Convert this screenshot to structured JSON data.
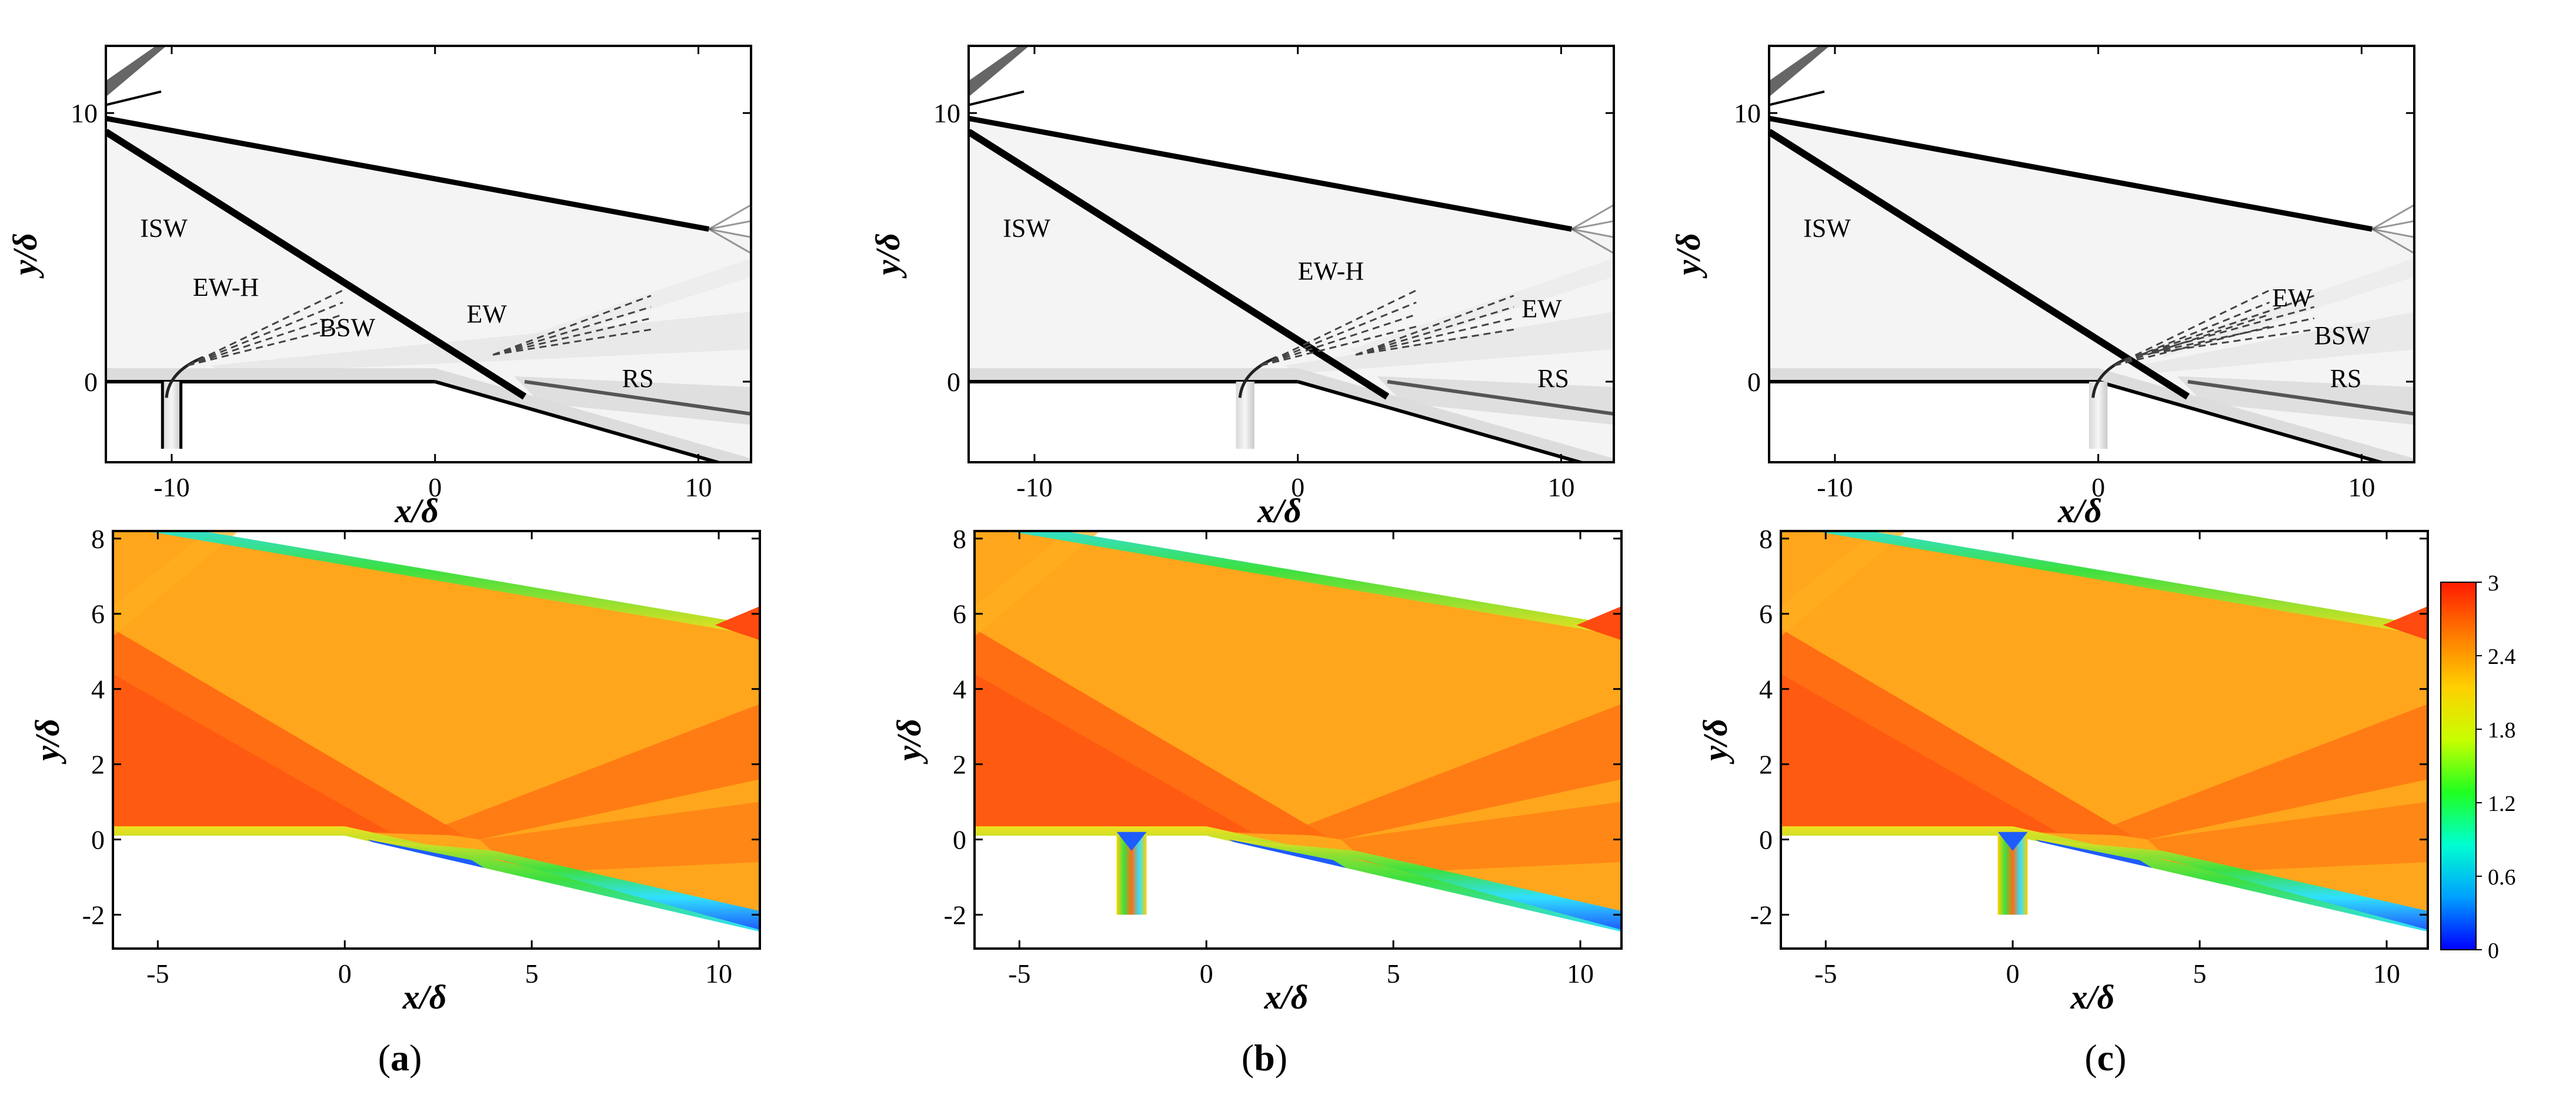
{
  "panel_labels": [
    "(a)",
    "(b)",
    "(c)"
  ],
  "chart_data": [
    {
      "type": "heatmap",
      "title": "",
      "field": "numerical schlieren (density gradient)",
      "xlabel": "x/δ",
      "ylabel": "y/δ",
      "xlim": [
        -12.5,
        12
      ],
      "ylim": [
        -3,
        12.5
      ],
      "xticks": [
        -10,
        0,
        10
      ],
      "yticks": [
        0,
        10
      ],
      "jet_x": -10,
      "annotations": [
        {
          "text": "ISW",
          "x": -11.2,
          "y": 5.4
        },
        {
          "text": "EW-H",
          "x": -9.2,
          "y": 3.2
        },
        {
          "text": "BSW",
          "x": -4.4,
          "y": 1.7
        },
        {
          "text": "EW",
          "x": 1.2,
          "y": 2.2
        },
        {
          "text": "RS",
          "x": 7.1,
          "y": -0.2
        }
      ]
    },
    {
      "type": "heatmap",
      "title": "",
      "field": "numerical schlieren (density gradient)",
      "xlabel": "x/δ",
      "ylabel": "y/δ",
      "xlim": [
        -12.5,
        12
      ],
      "ylim": [
        -3,
        12.5
      ],
      "xticks": [
        -10,
        0,
        10
      ],
      "yticks": [
        0,
        10
      ],
      "jet_x": -2,
      "annotations": [
        {
          "text": "ISW",
          "x": -11.2,
          "y": 5.4
        },
        {
          "text": "EW-H",
          "x": 0,
          "y": 3.8
        },
        {
          "text": "EW",
          "x": 8.5,
          "y": 2.4
        },
        {
          "text": "RS",
          "x": 9.1,
          "y": -0.2
        }
      ]
    },
    {
      "type": "heatmap",
      "title": "",
      "field": "numerical schlieren (density gradient)",
      "xlabel": "x/δ",
      "ylabel": "y/δ",
      "xlim": [
        -12.5,
        12
      ],
      "ylim": [
        -3,
        12.5
      ],
      "xticks": [
        -10,
        0,
        10
      ],
      "yticks": [
        0,
        10
      ],
      "jet_x": 0,
      "annotations": [
        {
          "text": "ISW",
          "x": -11.2,
          "y": 5.4
        },
        {
          "text": "EW",
          "x": 6.6,
          "y": 2.8
        },
        {
          "text": "BSW",
          "x": 8.2,
          "y": 1.4
        },
        {
          "text": "RS",
          "x": 8.8,
          "y": -0.2
        }
      ]
    },
    {
      "type": "heatmap",
      "title": "",
      "field": "Mach number contour",
      "xlabel": "x/δ",
      "ylabel": "y/δ",
      "xlim": [
        -6.2,
        11.1
      ],
      "ylim": [
        -2.9,
        8.2
      ],
      "xticks": [
        -5,
        0,
        5,
        10
      ],
      "xtick_labels": [
        "-5",
        "0",
        "5",
        "10"
      ],
      "yticks": [
        -2,
        0,
        2,
        4,
        6,
        8
      ],
      "ytick_labels": [
        "-2",
        "0",
        "2",
        "4",
        "6",
        "8"
      ],
      "jet_x": -10
    },
    {
      "type": "heatmap",
      "title": "",
      "field": "Mach number contour",
      "xlabel": "x/δ",
      "ylabel": "y/δ",
      "xlim": [
        -6.2,
        11.1
      ],
      "ylim": [
        -2.9,
        8.2
      ],
      "xticks": [
        -5,
        0,
        5,
        10
      ],
      "xtick_labels": [
        "-5",
        "0",
        "5",
        "10"
      ],
      "yticks": [
        -2,
        0,
        2,
        4,
        6,
        8
      ],
      "ytick_labels": [
        "-2",
        "0",
        "2",
        "4",
        "6",
        "8"
      ],
      "jet_x": -2
    },
    {
      "type": "heatmap",
      "title": "",
      "field": "Mach number contour",
      "xlabel": "x/δ",
      "ylabel": "y/δ",
      "xlim": [
        -6.2,
        11.1
      ],
      "ylim": [
        -2.9,
        8.2
      ],
      "xticks": [
        -5,
        0,
        5,
        10
      ],
      "xtick_labels": [
        "-5",
        "0",
        "5",
        "10"
      ],
      "yticks": [
        -2,
        0,
        2,
        4,
        6,
        8
      ],
      "ytick_labels": [
        "-2",
        "0",
        "2",
        "4",
        "6",
        "8"
      ],
      "jet_x": 0
    }
  ],
  "colorbar": {
    "range": [
      0,
      3
    ],
    "ticks": [
      0,
      0.6,
      1.2,
      1.8,
      2.4,
      3
    ],
    "tick_labels": [
      "0",
      "0.6",
      "1.2",
      "1.8",
      "2.4",
      "3"
    ],
    "colors": [
      "#0000ff",
      "#00a0ff",
      "#00ffd0",
      "#20ff20",
      "#c8ff00",
      "#ffd000",
      "#ff7a00",
      "#ff1a00"
    ]
  },
  "colors": {
    "ma_field": "#ffa61c",
    "ma_high": "#ff6e12",
    "ma_max": "#ff4a10",
    "ma_low_blue": "#1e5cff",
    "ma_low_cyan": "#30e0ff",
    "ma_green": "#3ce040",
    "ma_yellow": "#f0e020",
    "schlieren_shock": "#000000",
    "schlieren_bg": "#ffffff"
  }
}
